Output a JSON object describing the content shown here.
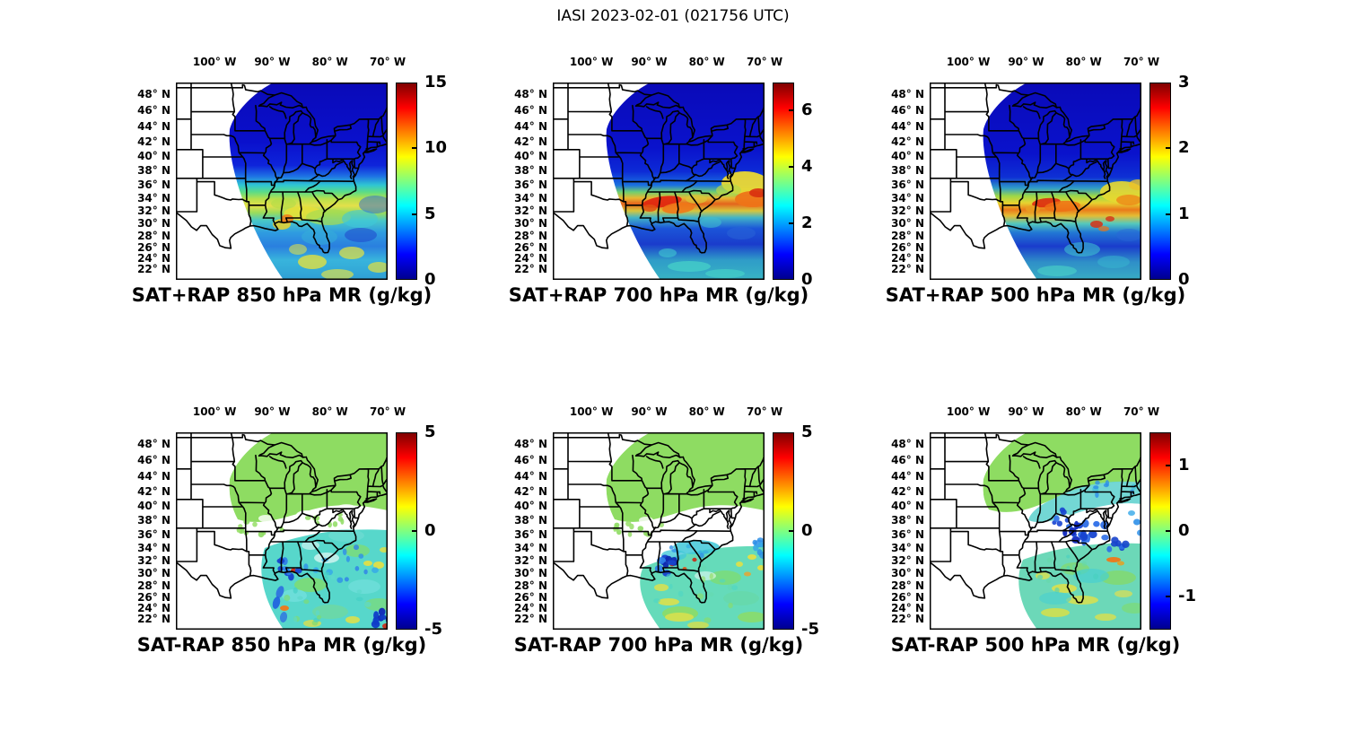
{
  "figure_title": "IASI 2023-02-01 (021756 UTC)",
  "axis": {
    "lon_labels": [
      "100° W",
      "90° W",
      "80° W",
      "70° W"
    ],
    "lon_values_deg_w": [
      100,
      90,
      80,
      70
    ],
    "lat_labels": [
      "48° N",
      "46° N",
      "44° N",
      "42° N",
      "40° N",
      "38° N",
      "36° N",
      "34° N",
      "32° N",
      "30° N",
      "28° N",
      "26° N",
      "24° N",
      "22° N"
    ],
    "lat_values_deg_n": [
      48,
      46,
      44,
      42,
      40,
      38,
      36,
      34,
      32,
      30,
      28,
      26,
      24,
      22
    ]
  },
  "panels": [
    {
      "title": "SAT+RAP 850 hPa MR (g/kg)",
      "colorbar_ticks": [
        "0",
        "5",
        "10",
        "15"
      ],
      "tick_values": [
        0,
        5,
        10,
        15
      ],
      "range": [
        0,
        15
      ]
    },
    {
      "title": "SAT+RAP 700 hPa MR (g/kg)",
      "colorbar_ticks": [
        "0",
        "2",
        "4",
        "6"
      ],
      "tick_values": [
        0,
        2,
        4,
        6
      ],
      "range": [
        0,
        7
      ]
    },
    {
      "title": "SAT+RAP 500 hPa MR (g/kg)",
      "colorbar_ticks": [
        "0",
        "1",
        "2",
        "3"
      ],
      "tick_values": [
        0,
        1,
        2,
        3
      ],
      "range": [
        0,
        3
      ]
    },
    {
      "title": "SAT-RAP 850 hPa MR (g/kg)",
      "colorbar_ticks": [
        "-5",
        "0",
        "5"
      ],
      "tick_values": [
        -5,
        0,
        5
      ],
      "range": [
        -5,
        5
      ]
    },
    {
      "title": "SAT-RAP 700 hPa MR (g/kg)",
      "colorbar_ticks": [
        "-5",
        "0",
        "5"
      ],
      "tick_values": [
        -5,
        0,
        5
      ],
      "range": [
        -5,
        5
      ]
    },
    {
      "title": "SAT-RAP 500 hPa MR (g/kg)",
      "colorbar_ticks": [
        "-1",
        "0",
        "1"
      ],
      "tick_values": [
        -1,
        0,
        1
      ],
      "range": [
        -1.5,
        1.5
      ]
    }
  ],
  "chart_data": {
    "type": "heatmap",
    "subtype": "satellite-swath-maps-over-us-states",
    "title": "IASI 2023-02-01 (021756 UTC)",
    "instrument": "IASI",
    "date": "2023-02-01",
    "time_utc": "021756",
    "colormap": "jet",
    "grid": false,
    "layout": "2 rows x 3 columns, colorbar right of each map, title below each map",
    "map_extent": {
      "lon_deg_w": [
        107,
        70
      ],
      "lat_deg_n": [
        20,
        50
      ]
    },
    "lon_tick_labels_deg_w": [
      100,
      90,
      80,
      70
    ],
    "lat_tick_labels_deg_n": [
      48,
      46,
      44,
      42,
      40,
      38,
      36,
      34,
      32,
      30,
      28,
      26,
      24,
      22
    ],
    "panels": [
      {
        "row": 1,
        "col": 1,
        "title": "SAT+RAP 850 hPa MR (g/kg)",
        "source": "SAT+RAP",
        "level_hPa": 850,
        "variable": "water vapor mixing ratio",
        "units": "g/kg",
        "colorbar_range": [
          0,
          15
        ],
        "colorbar_ticks": [
          0,
          5,
          10,
          15
        ],
        "pattern": "dark blue (~1-2) north of 38N across Great Lakes and Northeast; green-yellow band (~6-9) around 32-36N over MS/AL/GA; mottled cyan-blue with yellow patches (~4-8) over Gulf of Mexico and southern Atlantic; no data west of diagonal swath edge"
      },
      {
        "row": 1,
        "col": 2,
        "title": "SAT+RAP 700 hPa MR (g/kg)",
        "source": "SAT+RAP",
        "level_hPa": 700,
        "variable": "water vapor mixing ratio",
        "units": "g/kg",
        "colorbar_range": [
          0,
          7
        ],
        "colorbar_ticks": [
          0,
          2,
          4,
          6
        ],
        "pattern": "dark blue north; narrow orange-red maximum (~5-6.5) band near 34-36N over AR/TN/MS plus yellow-orange blob offshore Atlantic near 35N; blue with cyan streaks south over Gulf"
      },
      {
        "row": 1,
        "col": 3,
        "title": "SAT+RAP 500 hPa MR (g/kg)",
        "source": "SAT+RAP",
        "level_hPa": 500,
        "variable": "water vapor mixing ratio",
        "units": "g/kg",
        "colorbar_range": [
          0,
          3
        ],
        "colorbar_ticks": [
          0,
          1,
          2,
          3
        ],
        "pattern": "dark blue north; yellow-orange-red band (~2-3) along 34-37N over TN/northern AL/GA extending east over Atlantic; blue south with scattered cyan and small red spots"
      },
      {
        "row": 2,
        "col": 1,
        "title": "SAT-RAP 850 hPa MR (g/kg)",
        "source": "SAT-RAP difference",
        "level_hPa": 850,
        "variable": "mixing ratio difference",
        "units": "g/kg",
        "colorbar_range": [
          -5,
          5
        ],
        "colorbar_ticks": [
          -5,
          0,
          5
        ],
        "pattern": "light green (~+0.5) dotted field north of ~40N; data gap 36-40N; cyan (~-1) field south of 34N with scattered blue (~-3) dots near Gulf coast, dark blue cluster bottom right, few orange/red outliers near Florida"
      },
      {
        "row": 2,
        "col": 2,
        "title": "SAT-RAP 700 hPa MR (g/kg)",
        "source": "SAT-RAP difference",
        "level_hPa": 700,
        "variable": "mixing ratio difference",
        "units": "g/kg",
        "colorbar_range": [
          -5,
          5
        ],
        "colorbar_ticks": [
          -5,
          0,
          5
        ],
        "pattern": "light green (~+0.5) field north; gap in middle band; green-cyan field south with blue/dark-blue dot cluster near AL/GA coast, yellow streaks southwest, tiny red marks"
      },
      {
        "row": 2,
        "col": 3,
        "title": "SAT-RAP 500 hPa MR (g/kg)",
        "source": "SAT-RAP difference",
        "level_hPa": 500,
        "variable": "mixing ratio difference",
        "units": "g/kg",
        "colorbar_range": [
          -1.5,
          1.5
        ],
        "colorbar_ticks": [
          -1,
          0,
          1
        ],
        "pattern": "green (~+0.3) north with cyan band 42-46N in east; dark blue (~-1.2) dot cluster over KY/TN/Carolinas; cyan-green south with yellow streaks and small orange dash off Carolina coast"
      }
    ]
  }
}
